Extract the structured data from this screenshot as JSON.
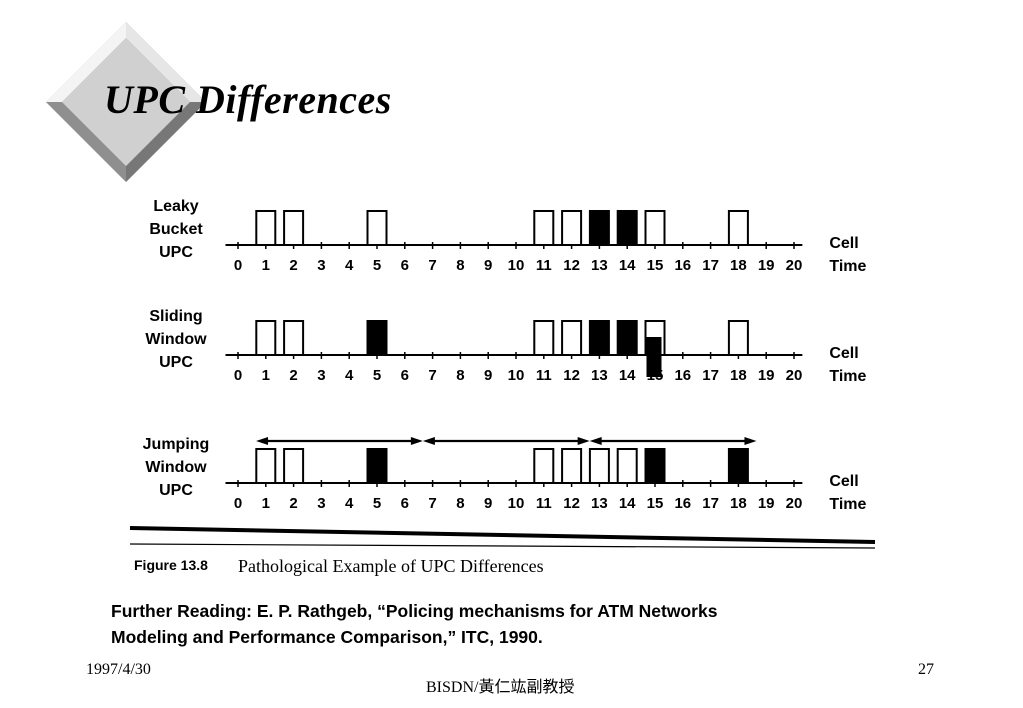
{
  "slide": {
    "title": "UPC Differences",
    "footer": {
      "date": "1997/4/30",
      "center": "BISDN/黃仁竑副教授",
      "page": "27"
    },
    "further_reading": {
      "line1": "Further Reading: E. P. Rathgeb, “Policing mechanisms for ATM Networks",
      "line2": "Modeling and Performance Comparison,” ITC, 1990."
    }
  },
  "figure": {
    "caption_label": "Figure 13.8",
    "caption_text": "Pathological Example of UPC Differences",
    "axis_label_line1": "Cell",
    "axis_label_line2": "Time",
    "ticks": [
      "0",
      "1",
      "2",
      "3",
      "4",
      "5",
      "6",
      "7",
      "8",
      "9",
      "10",
      "11",
      "12",
      "13",
      "14",
      "15",
      "16",
      "17",
      "18",
      "19",
      "20"
    ],
    "rows": [
      {
        "label": [
          "Leaky",
          "Bucket",
          "UPC"
        ],
        "cells": [
          {
            "t": 1,
            "state": "pass"
          },
          {
            "t": 2,
            "state": "pass"
          },
          {
            "t": 5,
            "state": "pass"
          },
          {
            "t": 11,
            "state": "pass"
          },
          {
            "t": 12,
            "state": "pass"
          },
          {
            "t": 13,
            "state": "discard"
          },
          {
            "t": 14,
            "state": "discard"
          },
          {
            "t": 15,
            "state": "pass"
          },
          {
            "t": 18,
            "state": "pass"
          }
        ]
      },
      {
        "label": [
          "Sliding",
          "Window",
          "UPC"
        ],
        "cells": [
          {
            "t": 1,
            "state": "pass"
          },
          {
            "t": 2,
            "state": "pass"
          },
          {
            "t": 5,
            "state": "discard"
          },
          {
            "t": 11,
            "state": "pass"
          },
          {
            "t": 12,
            "state": "pass"
          },
          {
            "t": 13,
            "state": "discard"
          },
          {
            "t": 14,
            "state": "discard"
          },
          {
            "t": 15,
            "state": "mixed"
          },
          {
            "t": 18,
            "state": "pass"
          }
        ]
      },
      {
        "label": [
          "Jumping",
          "Window",
          "UPC"
        ],
        "cells": [
          {
            "t": 1,
            "state": "pass"
          },
          {
            "t": 2,
            "state": "pass"
          },
          {
            "t": 5,
            "state": "discard"
          },
          {
            "t": 11,
            "state": "pass"
          },
          {
            "t": 12,
            "state": "pass"
          },
          {
            "t": 13,
            "state": "pass"
          },
          {
            "t": 14,
            "state": "pass"
          },
          {
            "t": 15,
            "state": "discard"
          },
          {
            "t": 18,
            "state": "discard"
          }
        ],
        "windows": [
          [
            1,
            7
          ],
          [
            7,
            13
          ],
          [
            13,
            19
          ]
        ]
      }
    ]
  }
}
